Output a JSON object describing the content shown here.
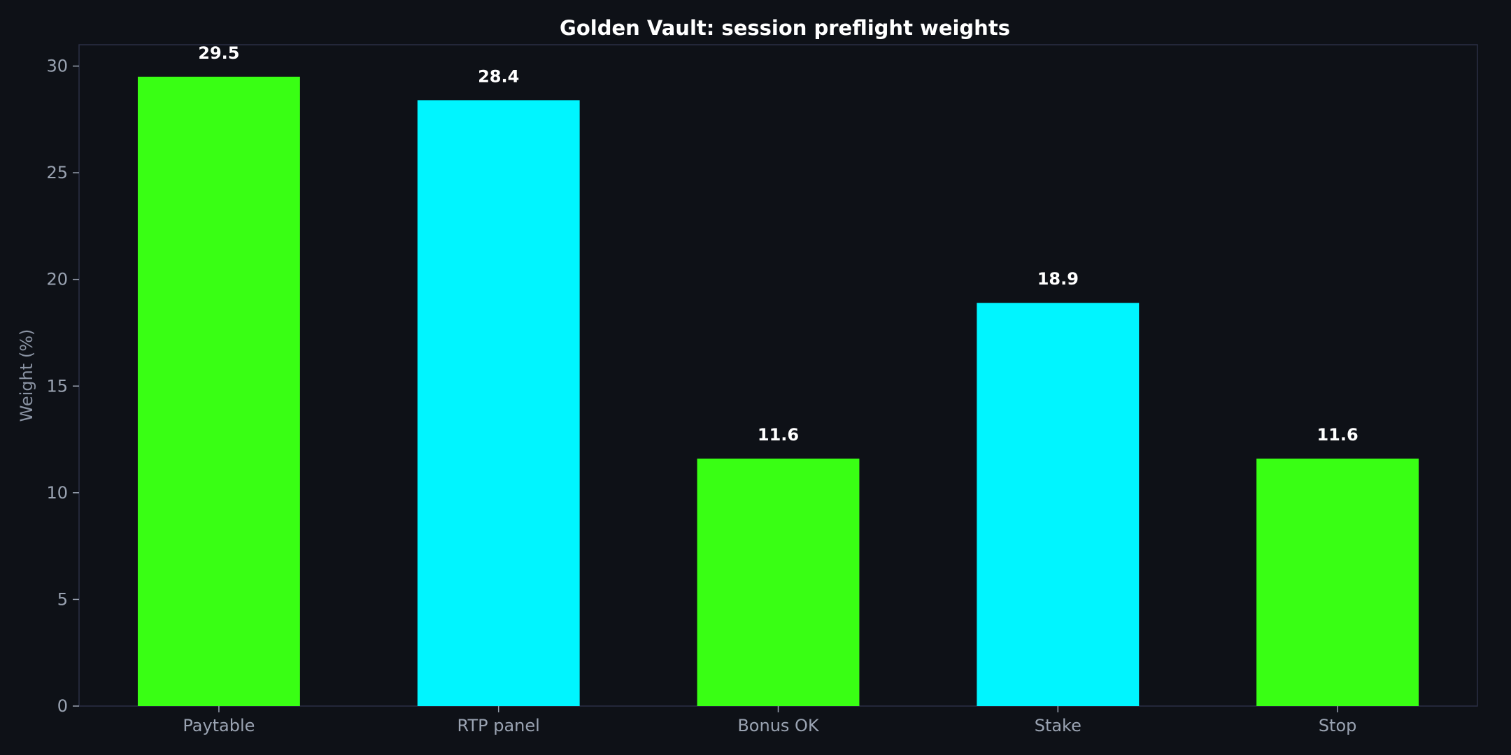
{
  "chart_data": {
    "type": "bar",
    "title": "Golden Vault: session preflight weights",
    "xlabel": "",
    "ylabel": "Weight (%)",
    "categories": [
      "Paytable",
      "RTP panel",
      "Bonus OK",
      "Stake",
      "Stop"
    ],
    "values": [
      29.5,
      28.4,
      11.6,
      18.9,
      11.6
    ],
    "data_labels": [
      "29.5",
      "28.4",
      "11.6",
      "18.9",
      "11.6"
    ],
    "bar_colors": [
      "#39ff14",
      "#00f5ff",
      "#39ff14",
      "#00f5ff",
      "#39ff14"
    ],
    "ylim": [
      0,
      31
    ],
    "yticks": [
      0,
      5,
      10,
      15,
      20,
      25,
      30
    ],
    "grid": false,
    "legend": "none"
  },
  "colors": {
    "background": "#0e1117",
    "axes_frame": "#2a2f45",
    "tick_text": "#9aa3b2",
    "title_text": "#ffffff"
  }
}
